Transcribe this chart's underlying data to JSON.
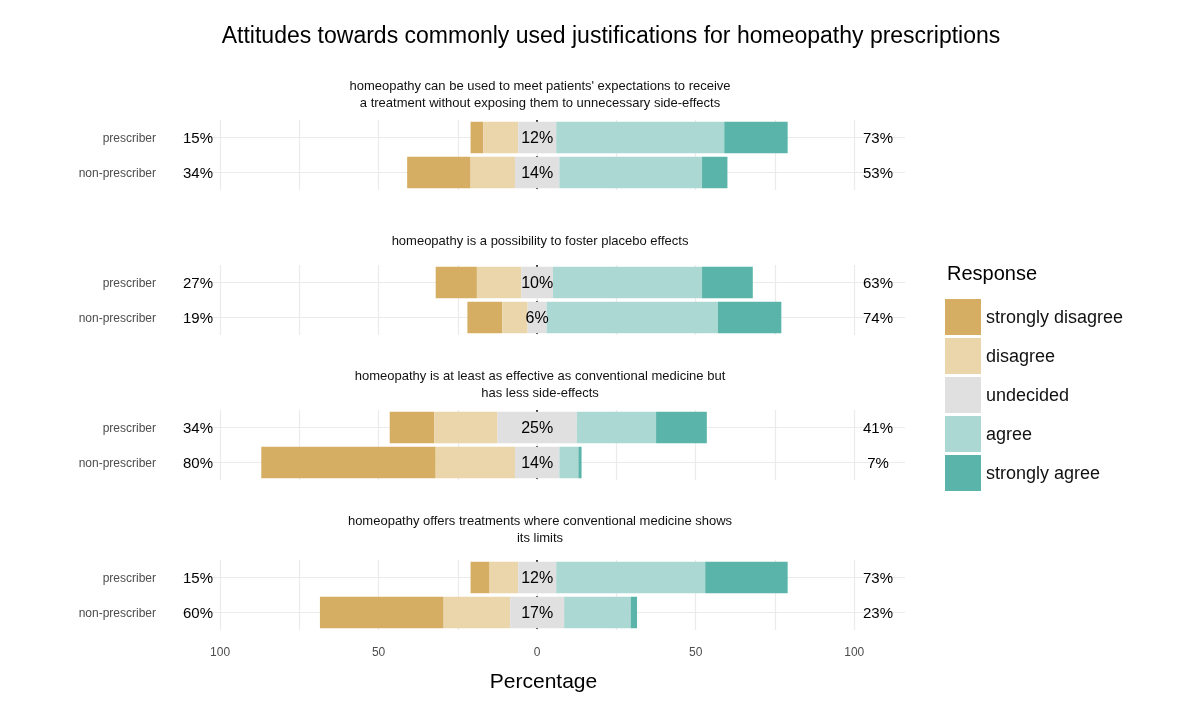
{
  "chart_data": [
    {
      "type": "bar",
      "orientation": "horizontal",
      "title": "Attitudes towards commonly used justifications for homeopathy prescriptions",
      "subtitle": "homeopathy can be used to meet patients' expectations to receive\na treatment without exposing them to unnecessary side-effects",
      "categories": [
        "prescriber",
        "non-prescriber"
      ],
      "series": [
        {
          "color": "#d5ae63",
          "values": [
            4,
            20
          ],
          "base": [
            -21,
            -41
          ]
        },
        {
          "color": "#ebd5ab",
          "values": [
            11,
            14
          ],
          "base": [
            -17,
            -21
          ]
        },
        {
          "color": "#e0e0e0",
          "values": [
            12,
            14
          ],
          "base": [
            -6,
            -7
          ],
          "value_labels": [
            "12%",
            "14%"
          ]
        },
        {
          "color": "#acd8d3",
          "values": [
            53,
            45
          ],
          "base": [
            6,
            7
          ]
        },
        {
          "color": "#5ab4a9",
          "values": [
            20,
            8
          ],
          "base": [
            59,
            52
          ]
        }
      ],
      "xlim": [
        -112,
        116
      ],
      "xticks": [
        {
          "value": -100,
          "label": null
        },
        {
          "value": -75,
          "label": null
        },
        {
          "value": -50,
          "label": null
        },
        {
          "value": -25,
          "label": null
        },
        {
          "value": 0,
          "label": null
        },
        {
          "value": 25,
          "label": null
        },
        {
          "value": 50,
          "label": null
        },
        {
          "value": 75,
          "label": null
        },
        {
          "value": 100,
          "label": null
        }
      ],
      "tick_labels": "y",
      "grid": true,
      "ref_lines": [
        {
          "axis": "x",
          "value": 0,
          "color": "#000000",
          "line_style": "dashed"
        }
      ],
      "annotations": [
        "15%",
        "34%",
        "73%",
        "53%"
      ]
    },
    {
      "type": "bar",
      "orientation": "horizontal",
      "subtitle": "homeopathy is a possibility to foster placebo effects",
      "categories": [
        "prescriber",
        "non-prescriber"
      ],
      "legend": "right",
      "legend_title": "Response",
      "series": [
        {
          "name": "strongly disagree",
          "color": "#d5ae63",
          "values": [
            13,
            11
          ],
          "base": [
            -32,
            -22
          ]
        },
        {
          "name": "disagree",
          "color": "#ebd5ab",
          "values": [
            14,
            8
          ],
          "base": [
            -19,
            -11
          ]
        },
        {
          "name": "undecided",
          "color": "#e0e0e0",
          "values": [
            10,
            6
          ],
          "base": [
            -5,
            -3
          ],
          "value_labels": [
            "10%",
            "6%"
          ]
        },
        {
          "name": "agree",
          "color": "#acd8d3",
          "values": [
            47,
            54
          ],
          "base": [
            5,
            3
          ]
        },
        {
          "name": "strongly agree",
          "color": "#5ab4a9",
          "values": [
            16,
            20
          ],
          "base": [
            52,
            57
          ]
        }
      ],
      "xlim": [
        -112,
        116
      ],
      "xticks": [
        {
          "value": -100,
          "label": null
        },
        {
          "value": -75,
          "label": null
        },
        {
          "value": -50,
          "label": null
        },
        {
          "value": -25,
          "label": null
        },
        {
          "value": 0,
          "label": null
        },
        {
          "value": 25,
          "label": null
        },
        {
          "value": 50,
          "label": null
        },
        {
          "value": 75,
          "label": null
        },
        {
          "value": 100,
          "label": null
        }
      ],
      "tick_labels": "y",
      "grid": true,
      "ref_lines": [
        {
          "axis": "x",
          "value": 0,
          "color": "#000000",
          "line_style": "dashed"
        }
      ],
      "annotations": [
        "27%",
        "19%",
        "63%",
        "74%"
      ]
    },
    {
      "type": "bar",
      "orientation": "horizontal",
      "subtitle": "homeopathy is at least as effective as conventional medicine but\nhas less side-effects",
      "categories": [
        "prescriber",
        "non-prescriber"
      ],
      "series": [
        {
          "color": "#d5ae63",
          "values": [
            14,
            55
          ],
          "base": [
            -46.5,
            -87
          ]
        },
        {
          "color": "#ebd5ab",
          "values": [
            20,
            25
          ],
          "base": [
            -32.5,
            -32
          ]
        },
        {
          "color": "#e0e0e0",
          "values": [
            25,
            14
          ],
          "base": [
            -12.5,
            -7
          ],
          "value_labels": [
            "25%",
            "14%"
          ]
        },
        {
          "color": "#acd8d3",
          "values": [
            25,
            6
          ],
          "base": [
            12.5,
            7
          ]
        },
        {
          "color": "#5ab4a9",
          "values": [
            16,
            1
          ],
          "base": [
            37.5,
            13
          ]
        }
      ],
      "xlim": [
        -112,
        116
      ],
      "xticks": [
        {
          "value": -100,
          "label": null
        },
        {
          "value": -75,
          "label": null
        },
        {
          "value": -50,
          "label": null
        },
        {
          "value": -25,
          "label": null
        },
        {
          "value": 0,
          "label": null
        },
        {
          "value": 25,
          "label": null
        },
        {
          "value": 50,
          "label": null
        },
        {
          "value": 75,
          "label": null
        },
        {
          "value": 100,
          "label": null
        }
      ],
      "tick_labels": "y",
      "grid": true,
      "ref_lines": [
        {
          "axis": "x",
          "value": 0,
          "color": "#000000",
          "line_style": "dashed"
        }
      ],
      "annotations": [
        "34%",
        "80%",
        "41%",
        "7%"
      ]
    },
    {
      "type": "bar",
      "orientation": "horizontal",
      "subtitle": "homeopathy offers treatments where conventional medicine shows\nits limits",
      "categories": [
        "prescriber",
        "non-prescriber"
      ],
      "xlabel": "Percentage",
      "series": [
        {
          "color": "#d5ae63",
          "values": [
            6,
            39
          ],
          "base": [
            -21,
            -68.5
          ]
        },
        {
          "color": "#ebd5ab",
          "values": [
            9,
            21
          ],
          "base": [
            -15,
            -29.5
          ]
        },
        {
          "color": "#e0e0e0",
          "values": [
            12,
            17
          ],
          "base": [
            -6,
            -8.5
          ],
          "value_labels": [
            "12%",
            "17%"
          ]
        },
        {
          "color": "#acd8d3",
          "values": [
            47,
            21
          ],
          "base": [
            6,
            8.5
          ]
        },
        {
          "color": "#5ab4a9",
          "values": [
            26,
            2
          ],
          "base": [
            53,
            29.5
          ]
        }
      ],
      "xlim": [
        -112,
        116
      ],
      "xticks": [
        {
          "value": -100,
          "label": "100"
        },
        {
          "value": -75,
          "label": null
        },
        {
          "value": -50,
          "label": "50"
        },
        {
          "value": -25,
          "label": null
        },
        0,
        {
          "value": 25,
          "label": null
        },
        50,
        {
          "value": 75,
          "label": null
        },
        100
      ],
      "grid": true,
      "ref_lines": [
        {
          "axis": "x",
          "value": 0,
          "color": "#000000",
          "line_style": "dashed"
        }
      ],
      "annotations": [
        "15%",
        "60%",
        "73%",
        "23%"
      ]
    }
  ]
}
